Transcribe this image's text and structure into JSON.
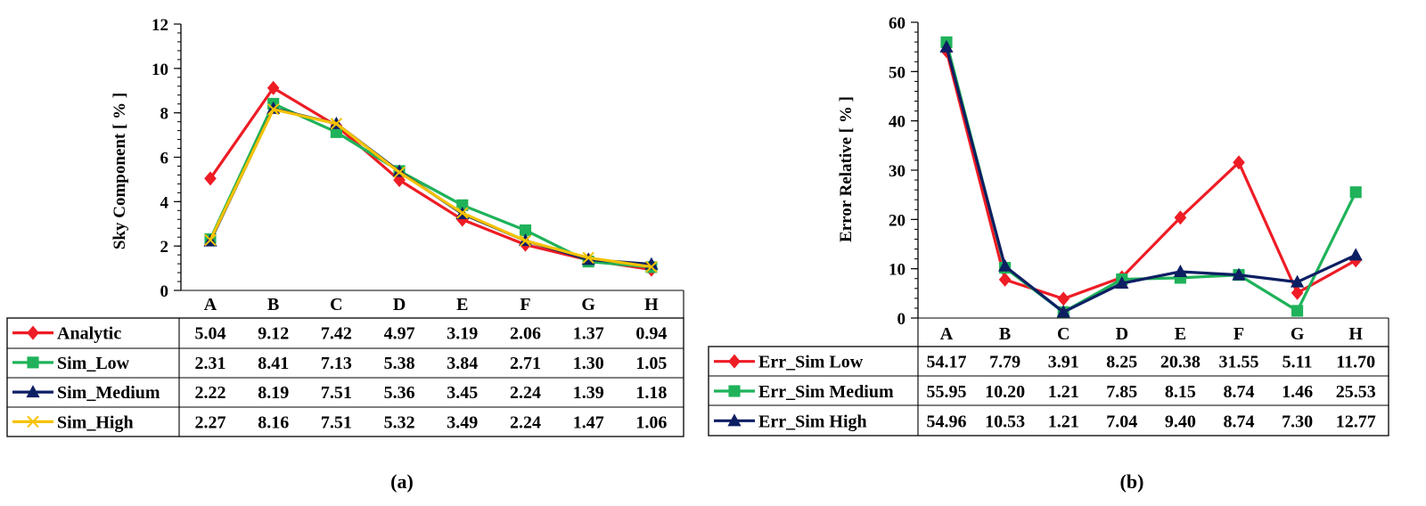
{
  "chart_data": [
    {
      "type": "line",
      "panel_label": "(a)",
      "ylabel": "Sky Component [ % ]",
      "ylim": [
        0,
        12
      ],
      "y_ticks": [
        0,
        2,
        4,
        6,
        8,
        10,
        12
      ],
      "y_minor_step": 0.4,
      "categories": [
        "A",
        "B",
        "C",
        "D",
        "E",
        "F",
        "G",
        "H"
      ],
      "series": [
        {
          "name": "Analytic",
          "color": "#ee1c25",
          "marker": "diamond",
          "values": [
            5.04,
            9.12,
            7.42,
            4.97,
            3.19,
            2.06,
            1.37,
            0.94
          ],
          "labels": [
            "5.04",
            "9.12",
            "7.42",
            "4.97",
            "3.19",
            "2.06",
            "1.37",
            "0.94"
          ]
        },
        {
          "name": "Sim_Low",
          "color": "#1fb25a",
          "marker": "square",
          "values": [
            2.31,
            8.41,
            7.13,
            5.38,
            3.84,
            2.71,
            1.3,
            1.05
          ],
          "labels": [
            "2.31",
            "8.41",
            "7.13",
            "5.38",
            "3.84",
            "2.71",
            "1.30",
            "1.05"
          ]
        },
        {
          "name": "Sim_Medium",
          "color": "#0d1f63",
          "marker": "triangle",
          "values": [
            2.22,
            8.19,
            7.51,
            5.36,
            3.45,
            2.24,
            1.39,
            1.18
          ],
          "labels": [
            "2.22",
            "8.19",
            "7.51",
            "5.36",
            "3.45",
            "2.24",
            "1.39",
            "1.18"
          ]
        },
        {
          "name": "Sim_High",
          "color": "#f5c200",
          "marker": "x",
          "values": [
            2.27,
            8.16,
            7.51,
            5.32,
            3.49,
            2.24,
            1.47,
            1.06
          ],
          "labels": [
            "2.27",
            "8.16",
            "7.51",
            "5.32",
            "3.49",
            "2.24",
            "1.47",
            "1.06"
          ]
        }
      ]
    },
    {
      "type": "line",
      "panel_label": "(b)",
      "ylabel": "Error Relative [ % ]",
      "ylim": [
        0,
        60
      ],
      "y_ticks": [
        0,
        10,
        20,
        30,
        40,
        50,
        60
      ],
      "y_minor_step": 2,
      "categories": [
        "A",
        "B",
        "C",
        "D",
        "E",
        "F",
        "G",
        "H"
      ],
      "series": [
        {
          "name": "Err_Sim Low",
          "color": "#ee1c25",
          "marker": "diamond",
          "values": [
            54.17,
            7.79,
            3.91,
            8.25,
            20.38,
            31.55,
            5.11,
            11.7
          ],
          "labels": [
            "54.17",
            "7.79",
            "3.91",
            "8.25",
            "20.38",
            "31.55",
            "5.11",
            "11.70"
          ]
        },
        {
          "name": "Err_Sim Medium",
          "color": "#1fb25a",
          "marker": "square",
          "values": [
            55.95,
            10.2,
            1.21,
            7.85,
            8.15,
            8.74,
            1.46,
            25.53
          ],
          "labels": [
            "55.95",
            "10.20",
            "1.21",
            "7.85",
            "8.15",
            "8.74",
            "1.46",
            "25.53"
          ]
        },
        {
          "name": "Err_Sim High",
          "color": "#0d1f63",
          "marker": "triangle",
          "values": [
            54.96,
            10.53,
            1.21,
            7.04,
            9.4,
            8.74,
            7.3,
            12.77
          ],
          "labels": [
            "54.96",
            "10.53",
            "1.21",
            "7.04",
            "9.40",
            "8.74",
            "7.30",
            "12.77"
          ]
        }
      ]
    }
  ]
}
